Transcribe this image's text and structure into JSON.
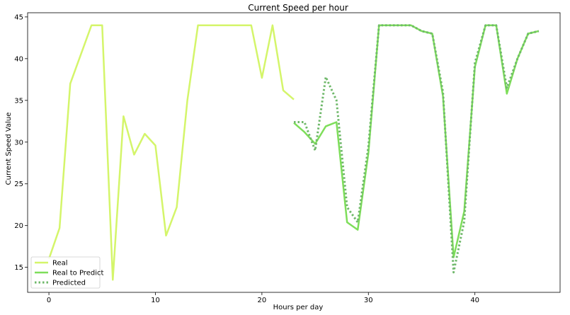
{
  "chart_data": {
    "type": "line",
    "title": "Current Speed per hour",
    "xlabel": "Hours per day",
    "ylabel": "Current Speed Value",
    "xlim": [
      -2,
      48
    ],
    "ylim": [
      12,
      45.5
    ],
    "xticks": [
      0,
      10,
      20,
      30,
      40
    ],
    "yticks": [
      15,
      20,
      25,
      30,
      35,
      40,
      45
    ],
    "grid": false,
    "legend_position": "lower-left",
    "series": [
      {
        "name": "Real",
        "color": "#d4f56a",
        "style": "solid",
        "x": [
          0,
          1,
          2,
          4,
          5,
          6,
          7,
          8,
          9,
          10,
          11,
          12,
          13,
          14,
          15,
          16,
          17,
          18,
          19,
          20,
          21,
          22,
          23
        ],
        "y": [
          16.0,
          19.7,
          37.0,
          44.0,
          44.0,
          13.5,
          33.1,
          28.5,
          31.0,
          29.6,
          18.8,
          22.2,
          35.0,
          44.0,
          44.0,
          44.0,
          44.0,
          44.0,
          44.0,
          37.7,
          44.0,
          36.2,
          35.1
        ]
      },
      {
        "name": "Real to Predict",
        "color": "#7ede5a",
        "style": "solid",
        "x": [
          23,
          24,
          25,
          26,
          27,
          28,
          29,
          30,
          31,
          32,
          33,
          34,
          35,
          36,
          37,
          38,
          39,
          40,
          41,
          42,
          43,
          44,
          45,
          46
        ],
        "y": [
          32.3,
          31.2,
          29.8,
          31.9,
          32.4,
          20.4,
          19.5,
          28.7,
          44.0,
          44.0,
          44.0,
          44.0,
          43.3,
          43.0,
          35.5,
          16.2,
          21.7,
          39.0,
          44.0,
          44.0,
          35.8,
          40.0,
          43.0,
          43.3
        ]
      },
      {
        "name": "Predicted",
        "color": "#6fb86a",
        "style": "dotted",
        "x": [
          23,
          24,
          25,
          26,
          27,
          28,
          29,
          30,
          31,
          32,
          33,
          34,
          35,
          36,
          37,
          38,
          39,
          40,
          41,
          42,
          43,
          44,
          45,
          46
        ],
        "y": [
          32.4,
          32.4,
          29.0,
          37.8,
          35.0,
          22.2,
          20.4,
          29.5,
          44.0,
          44.0,
          44.0,
          44.0,
          43.3,
          43.0,
          36.0,
          14.4,
          20.5,
          39.5,
          44.0,
          44.0,
          36.5,
          40.0,
          43.0,
          43.3
        ]
      }
    ]
  }
}
